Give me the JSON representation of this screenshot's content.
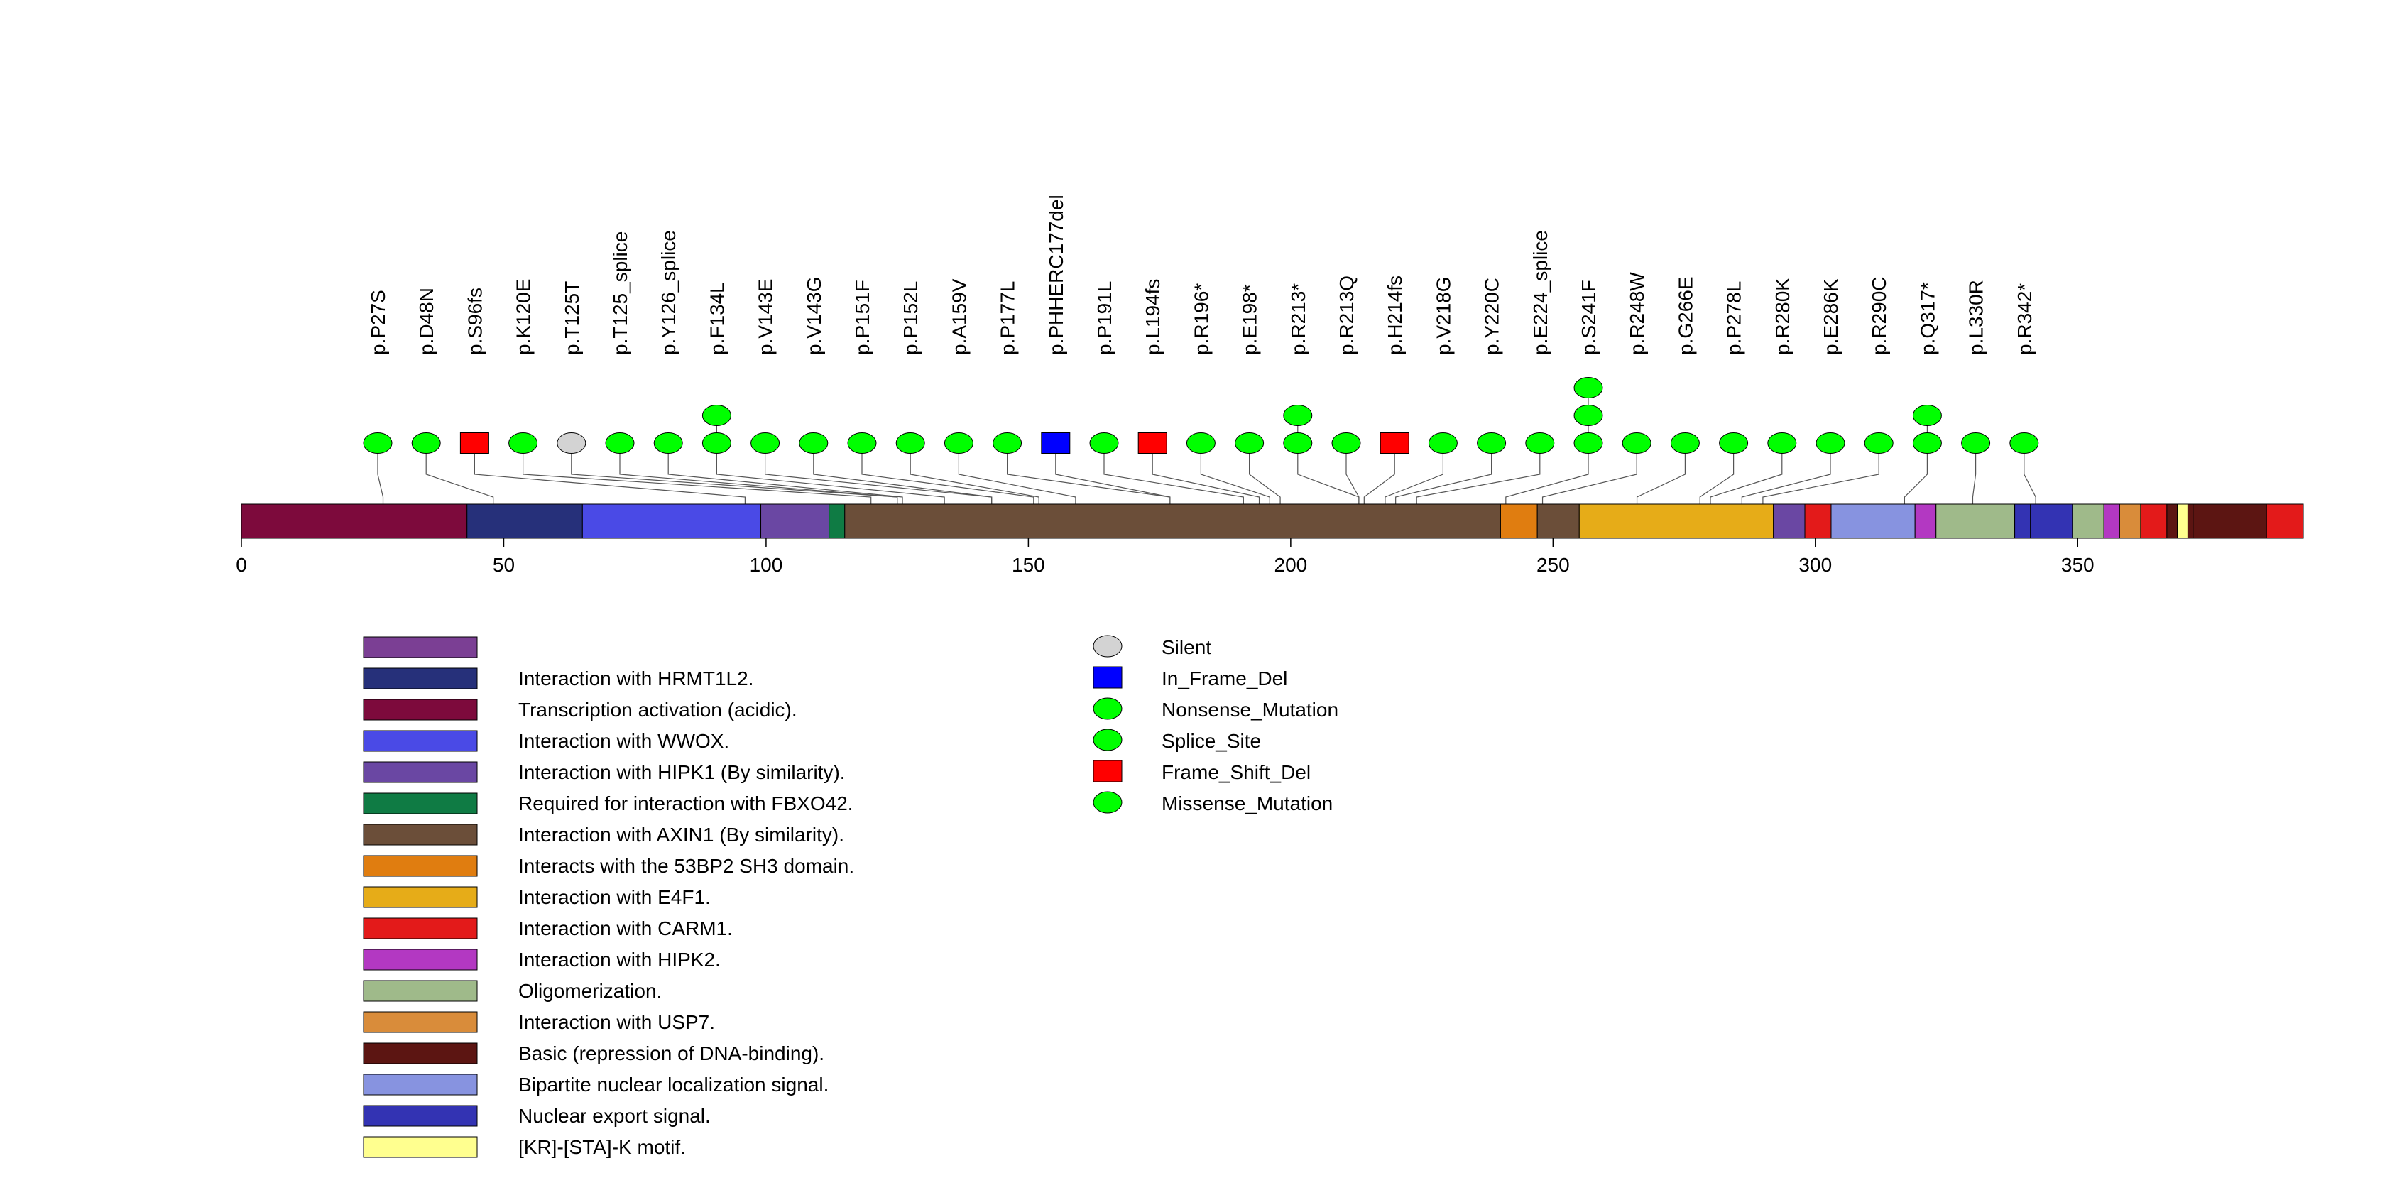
{
  "chart_data": {
    "type": "lollipop",
    "protein_length": 393,
    "x_ticks": [
      0,
      50,
      100,
      150,
      200,
      250,
      300,
      350
    ],
    "x_tick_labels": [
      "0",
      "50",
      "100",
      "150",
      "200",
      "250",
      "300",
      "350"
    ],
    "domain_colors": {
      "unnamed": "#7b3f94",
      "hrmt1l2": "#26307a",
      "transactivation": "#7d0a3c",
      "wwox": "#4a4ae6",
      "hipk1": "#6a47a3",
      "fbxo42": "#0f7b44",
      "axin1": "#6b4e39",
      "sh3": "#e07d10",
      "e4f1": "#e6ac18",
      "carm1": "#e31a1a",
      "hipk2": "#b338c2",
      "oligo": "#9fba8a",
      "usp7": "#d98c3a",
      "basic": "#5c1512",
      "nls": "#8793e0",
      "nes": "#3333b3",
      "motif": "#ffff8f"
    },
    "domains": [
      {
        "start": 0,
        "end": 43,
        "key": "transactivation"
      },
      {
        "start": 43,
        "end": 65,
        "key": "hrmt1l2"
      },
      {
        "start": 65,
        "end": 99,
        "key": "wwox"
      },
      {
        "start": 99,
        "end": 112,
        "key": "hipk1"
      },
      {
        "start": 112,
        "end": 115,
        "key": "fbxo42"
      },
      {
        "start": 115,
        "end": 240,
        "key": "axin1"
      },
      {
        "start": 240,
        "end": 247,
        "key": "sh3"
      },
      {
        "start": 247,
        "end": 255,
        "key": "axin1"
      },
      {
        "start": 255,
        "end": 292,
        "key": "e4f1"
      },
      {
        "start": 292,
        "end": 298,
        "key": "hipk1"
      },
      {
        "start": 298,
        "end": 303,
        "key": "carm1"
      },
      {
        "start": 303,
        "end": 319,
        "key": "nls"
      },
      {
        "start": 319,
        "end": 323,
        "key": "hipk2"
      },
      {
        "start": 323,
        "end": 338,
        "key": "oligo"
      },
      {
        "start": 338,
        "end": 341,
        "key": "nes"
      },
      {
        "start": 341,
        "end": 349,
        "key": "nes"
      },
      {
        "start": 349,
        "end": 355,
        "key": "oligo"
      },
      {
        "start": 355,
        "end": 358,
        "key": "hipk2"
      },
      {
        "start": 358,
        "end": 362,
        "key": "usp7"
      },
      {
        "start": 362,
        "end": 367,
        "key": "carm1"
      },
      {
        "start": 367,
        "end": 369,
        "key": "basic"
      },
      {
        "start": 369,
        "end": 371,
        "key": "motif"
      },
      {
        "start": 371,
        "end": 372,
        "key": "basic"
      },
      {
        "start": 372,
        "end": 386,
        "key": "basic"
      },
      {
        "start": 386,
        "end": 393,
        "key": "carm1"
      }
    ],
    "mutation_types": {
      "silent": {
        "shape": "ellipse",
        "color": "#d3d3d3"
      },
      "inframe": {
        "shape": "rect",
        "color": "#0000ff"
      },
      "nonsense": {
        "shape": "ellipse",
        "color": "#00ff00"
      },
      "splice": {
        "shape": "ellipse",
        "color": "#00ff00"
      },
      "frameshift": {
        "shape": "rect",
        "color": "#ff0000"
      },
      "missense": {
        "shape": "ellipse",
        "color": "#00ff00"
      }
    },
    "mutations": [
      {
        "label": "p.P27S",
        "pos": 27,
        "types": [
          "missense"
        ]
      },
      {
        "label": "p.D48N",
        "pos": 48,
        "types": [
          "missense"
        ]
      },
      {
        "label": "p.S96fs",
        "pos": 96,
        "types": [
          "frameshift"
        ]
      },
      {
        "label": "p.K120E",
        "pos": 120,
        "types": [
          "missense"
        ]
      },
      {
        "label": "p.T125T",
        "pos": 125,
        "types": [
          "silent"
        ]
      },
      {
        "label": "p.T125_splice",
        "pos": 125,
        "types": [
          "splice"
        ]
      },
      {
        "label": "p.Y126_splice",
        "pos": 126,
        "types": [
          "splice"
        ]
      },
      {
        "label": "p.F134L",
        "pos": 134,
        "types": [
          "missense",
          "missense"
        ]
      },
      {
        "label": "p.V143E",
        "pos": 143,
        "types": [
          "missense"
        ]
      },
      {
        "label": "p.V143G",
        "pos": 143,
        "types": [
          "missense"
        ]
      },
      {
        "label": "p.P151F",
        "pos": 151,
        "types": [
          "missense"
        ]
      },
      {
        "label": "p.P152L",
        "pos": 152,
        "types": [
          "missense"
        ]
      },
      {
        "label": "p.A159V",
        "pos": 159,
        "types": [
          "missense"
        ]
      },
      {
        "label": "p.P177L",
        "pos": 177,
        "types": [
          "missense"
        ]
      },
      {
        "label": "p.PHHERC177del",
        "pos": 177,
        "types": [
          "inframe"
        ]
      },
      {
        "label": "p.P191L",
        "pos": 191,
        "types": [
          "missense"
        ]
      },
      {
        "label": "p.L194fs",
        "pos": 194,
        "types": [
          "frameshift"
        ]
      },
      {
        "label": "p.R196*",
        "pos": 196,
        "types": [
          "nonsense"
        ]
      },
      {
        "label": "p.E198*",
        "pos": 198,
        "types": [
          "nonsense"
        ]
      },
      {
        "label": "p.R213*",
        "pos": 213,
        "types": [
          "nonsense",
          "nonsense"
        ]
      },
      {
        "label": "p.R213Q",
        "pos": 213,
        "types": [
          "missense"
        ]
      },
      {
        "label": "p.H214fs",
        "pos": 214,
        "types": [
          "frameshift"
        ]
      },
      {
        "label": "p.V218G",
        "pos": 218,
        "types": [
          "missense"
        ]
      },
      {
        "label": "p.Y220C",
        "pos": 220,
        "types": [
          "missense"
        ]
      },
      {
        "label": "p.E224_splice",
        "pos": 224,
        "types": [
          "splice"
        ]
      },
      {
        "label": "p.S241F",
        "pos": 241,
        "types": [
          "missense",
          "missense",
          "missense"
        ]
      },
      {
        "label": "p.R248W",
        "pos": 248,
        "types": [
          "missense"
        ]
      },
      {
        "label": "p.G266E",
        "pos": 266,
        "types": [
          "missense"
        ]
      },
      {
        "label": "p.P278L",
        "pos": 278,
        "types": [
          "missense"
        ]
      },
      {
        "label": "p.R280K",
        "pos": 280,
        "types": [
          "missense"
        ]
      },
      {
        "label": "p.E286K",
        "pos": 286,
        "types": [
          "missense"
        ]
      },
      {
        "label": "p.R290C",
        "pos": 290,
        "types": [
          "missense"
        ]
      },
      {
        "label": "p.Q317*",
        "pos": 317,
        "types": [
          "nonsense",
          "nonsense"
        ]
      },
      {
        "label": "p.L330R",
        "pos": 330,
        "types": [
          "missense"
        ]
      },
      {
        "label": "p.R342*",
        "pos": 342,
        "types": [
          "nonsense"
        ]
      }
    ],
    "domain_legend": [
      {
        "label": "",
        "key": "unnamed"
      },
      {
        "label": "Interaction with HRMT1L2.",
        "key": "hrmt1l2"
      },
      {
        "label": "Transcription activation (acidic).",
        "key": "transactivation"
      },
      {
        "label": "Interaction with WWOX.",
        "key": "wwox"
      },
      {
        "label": "Interaction with HIPK1 (By similarity).",
        "key": "hipk1"
      },
      {
        "label": "Required for interaction with FBXO42.",
        "key": "fbxo42"
      },
      {
        "label": "Interaction with AXIN1 (By similarity).",
        "key": "axin1"
      },
      {
        "label": "Interacts with the 53BP2 SH3 domain.",
        "key": "sh3"
      },
      {
        "label": "Interaction with E4F1.",
        "key": "e4f1"
      },
      {
        "label": "Interaction with CARM1.",
        "key": "carm1"
      },
      {
        "label": "Interaction with HIPK2.",
        "key": "hipk2"
      },
      {
        "label": "Oligomerization.",
        "key": "oligo"
      },
      {
        "label": "Interaction with USP7.",
        "key": "usp7"
      },
      {
        "label": "Basic (repression of DNA-binding).",
        "key": "basic"
      },
      {
        "label": "Bipartite nuclear localization signal.",
        "key": "nls"
      },
      {
        "label": "Nuclear export signal.",
        "key": "nes"
      },
      {
        "label": "[KR]-[STA]-K motif.",
        "key": "motif"
      }
    ],
    "mutation_legend": [
      {
        "label": "Silent",
        "key": "silent"
      },
      {
        "label": "In_Frame_Del",
        "key": "inframe"
      },
      {
        "label": "Nonsense_Mutation",
        "key": "nonsense"
      },
      {
        "label": "Splice_Site",
        "key": "splice"
      },
      {
        "label": "Frame_Shift_Del",
        "key": "frameshift"
      },
      {
        "label": "Missense_Mutation",
        "key": "missense"
      }
    ]
  }
}
